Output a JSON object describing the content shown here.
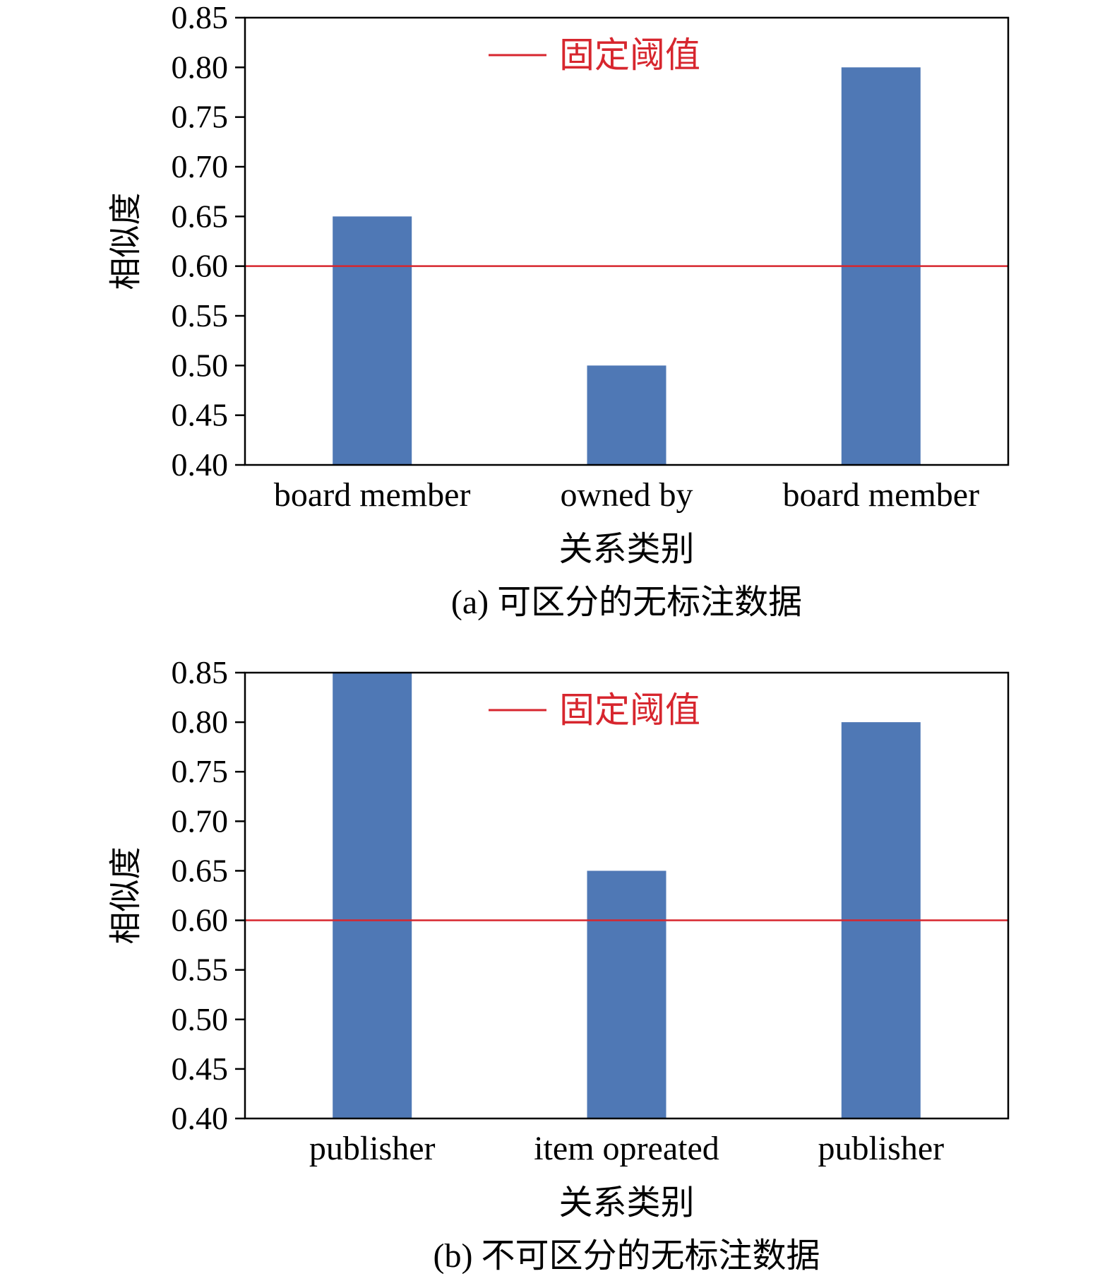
{
  "colors": {
    "bar": "#4f78b5",
    "threshold": "#d7262e",
    "axis": "#000000",
    "text": "#000000"
  },
  "chart_data": [
    {
      "type": "bar",
      "caption": "(a)  可区分的无标注数据",
      "categories": [
        "board member",
        "owned by",
        "board member"
      ],
      "values": [
        0.65,
        0.5,
        0.8
      ],
      "xlabel": "关系类别",
      "ylabel": "相似度",
      "ylim": [
        0.4,
        0.85
      ],
      "yticks": [
        "0.85",
        "0.80",
        "0.75",
        "0.70",
        "0.65",
        "0.60",
        "0.55",
        "0.50",
        "0.45",
        "0.40"
      ],
      "threshold": {
        "label": "固定阈值",
        "value": 0.6
      },
      "legend_position": "top-center",
      "grid": false
    },
    {
      "type": "bar",
      "caption": "(b)  不可区分的无标注数据",
      "categories": [
        "publisher",
        "item opreated",
        "publisher"
      ],
      "values": [
        0.85,
        0.65,
        0.8
      ],
      "xlabel": "关系类别",
      "ylabel": "相似度",
      "ylim": [
        0.4,
        0.85
      ],
      "yticks": [
        "0.85",
        "0.80",
        "0.75",
        "0.70",
        "0.65",
        "0.60",
        "0.55",
        "0.50",
        "0.45",
        "0.40"
      ],
      "threshold": {
        "label": "固定阈值",
        "value": 0.6
      },
      "legend_position": "top-center",
      "grid": false
    }
  ]
}
